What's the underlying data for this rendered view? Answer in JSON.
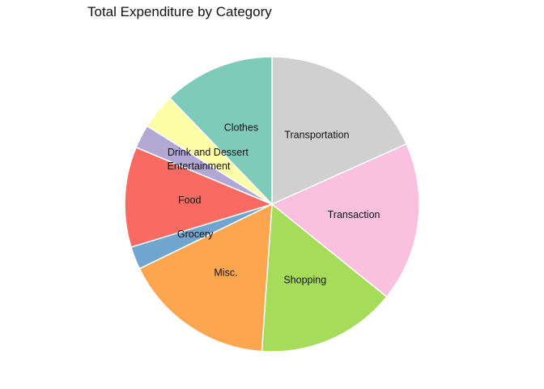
{
  "chart_data": {
    "type": "pie",
    "title": "Total Expenditure by Category",
    "start": "top",
    "direction": "clockwise",
    "slices": [
      {
        "label": "Transportation",
        "value": 18.3,
        "color": "#D0D0D0"
      },
      {
        "label": "Transaction",
        "value": 17.5,
        "color": "#F9C0E0"
      },
      {
        "label": "Shopping",
        "value": 15.3,
        "color": "#A6DC5A"
      },
      {
        "label": "Misc.",
        "value": 16.7,
        "color": "#FCA650"
      },
      {
        "label": "Grocery",
        "value": 2.5,
        "color": "#6FA5CF"
      },
      {
        "label": "Food",
        "value": 11.0,
        "color": "#F96A62"
      },
      {
        "label": "Entertainment",
        "value": 2.6,
        "color": "#B1A9D4"
      },
      {
        "label": "Drink and Dessert",
        "value": 3.9,
        "color": "#FEFEA6"
      },
      {
        "label": "Clothes",
        "value": 12.2,
        "color": "#7FCBBA"
      }
    ]
  }
}
